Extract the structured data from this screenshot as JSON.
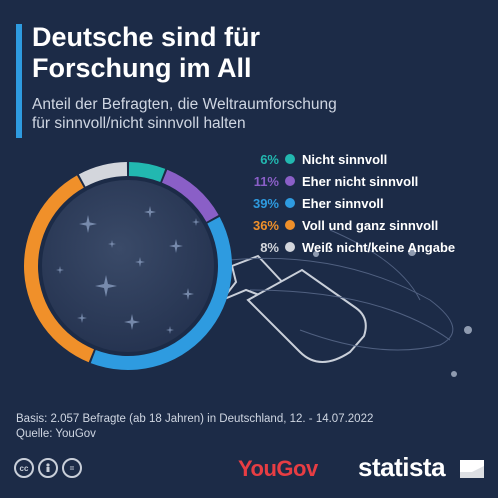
{
  "header": {
    "title_line1": "Deutsche sind für",
    "title_line2": "Forschung im All",
    "subtitle_line1": "Anteil der Befragten, die Weltraumforschung",
    "subtitle_line2": "für sinnvoll/nicht sinnvoll halten"
  },
  "chart_data": {
    "type": "pie",
    "style": "donut",
    "title": "Deutsche sind für Forschung im All",
    "subtitle": "Anteil der Befragten, die Weltraumforschung für sinnvoll/nicht sinnvoll halten",
    "legend_position": "right",
    "series": [
      {
        "name": "Nicht sinnvoll",
        "value": 6,
        "label": "6%",
        "color": "#22b8b0"
      },
      {
        "name": "Eher nicht sinnvoll",
        "value": 11,
        "label": "11%",
        "color": "#8a5fc7"
      },
      {
        "name": "Eher sinnvoll",
        "value": 39,
        "label": "39%",
        "color": "#2e9be0"
      },
      {
        "name": "Voll und ganz sinnvoll",
        "value": 36,
        "label": "36%",
        "color": "#f0902a"
      },
      {
        "name": "Weiß nicht/keine Angabe",
        "value": 8,
        "label": "8%",
        "color": "#d3d6dc"
      }
    ]
  },
  "footer": {
    "basis": "Basis: 2.057 Befragte (ab 18 Jahren) in Deutschland, 12. - 14.07.2022",
    "source": "Quelle: YouGov"
  },
  "logos": {
    "yougov": "YouGov",
    "statista": "statista"
  },
  "license_icons": [
    "cc-icon",
    "person-icon",
    "equals-icon"
  ],
  "colors": {
    "background": "#1c2b47",
    "accent": "#2e9be0"
  }
}
